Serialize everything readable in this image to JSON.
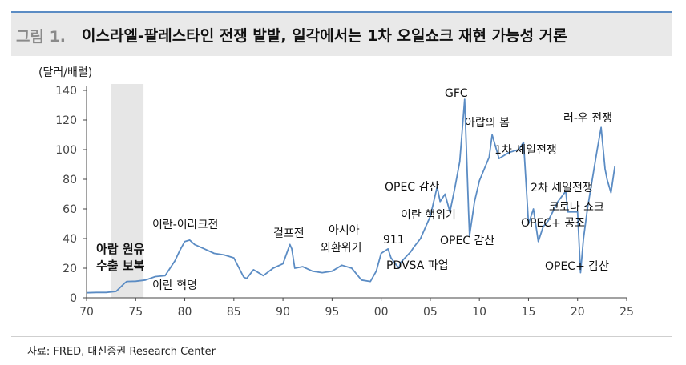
{
  "header": {
    "prefix": "그림 1.",
    "title": "이스라엘-팔레스타인 전쟁 발발, 일각에서는 1차 오일쇼크 재현 가능성 거론"
  },
  "unit_label": "(달러/배럴)",
  "source": "자료: FRED, 대신증권 Research Center",
  "colors": {
    "line": "#5b8cc4",
    "shade": "#e6e6e6",
    "header_bg": "#e9e9e9"
  },
  "chart_data": {
    "type": "line",
    "title": "",
    "xlabel": "",
    "ylabel": "(달러/배럴)",
    "xlim": [
      1970,
      2025
    ],
    "ylim": [
      0,
      140
    ],
    "x_ticks": [
      "70",
      "75",
      "80",
      "85",
      "90",
      "95",
      "00",
      "05",
      "10",
      "15",
      "20",
      "25"
    ],
    "y_ticks": [
      "0",
      "20",
      "40",
      "60",
      "80",
      "100",
      "120",
      "140"
    ],
    "grid": false,
    "legend": "none",
    "shaded_period": [
      1972.5,
      1975.8
    ],
    "series": [
      {
        "x": [
          1970,
          1971,
          1972,
          1973,
          1973.9,
          1974.1,
          1975,
          1976,
          1977,
          1978,
          1979,
          1979.5,
          1980,
          1980.5,
          1981,
          1982,
          1983,
          1984,
          1985,
          1986,
          1986.3,
          1987,
          1988,
          1989,
          1990,
          1990.7,
          1990.9,
          1991.2,
          1992,
          1993,
          1994,
          1995,
          1996,
          1997,
          1998,
          1998.9,
          1999.5,
          2000,
          2000.7,
          2001,
          2001.8,
          2002,
          2003,
          2003.3,
          2004,
          2005,
          2005.7,
          2006,
          2006.5,
          2007,
          2007.5,
          2008,
          2008.5,
          2008.9,
          2009,
          2009.5,
          2010,
          2011,
          2011.3,
          2012,
          2013,
          2014,
          2014.5,
          2015,
          2015.5,
          2016,
          2016.5,
          2017,
          2018,
          2018.8,
          2019,
          2020,
          2020.3,
          2020.6,
          2021,
          2022,
          2022.4,
          2022.8,
          2023,
          2023.4,
          2023.8
        ],
        "y": [
          3.4,
          3.6,
          3.6,
          4.3,
          10,
          11,
          11.2,
          12,
          14.3,
          14.9,
          25,
          32,
          38,
          39,
          36,
          33,
          30,
          29,
          27,
          14,
          13,
          19,
          15,
          20,
          23,
          36,
          33,
          20,
          21,
          18,
          17,
          18,
          22,
          20,
          12,
          11,
          18,
          30,
          33,
          27,
          20,
          24,
          31,
          34,
          40,
          55,
          75,
          65,
          70,
          58,
          74,
          92,
          134,
          58,
          42,
          65,
          79,
          95,
          110,
          94,
          98,
          100,
          105,
          50,
          60,
          38,
          48,
          52,
          65,
          72,
          58,
          58,
          17,
          40,
          60,
          100,
          115,
          87,
          80,
          71,
          89
        ]
      }
    ],
    "annotations": [
      "아랍 원유",
      "수출 보복",
      "이란 혁명",
      "이란-이라크전",
      "걸프전",
      "아시아",
      "외환위기",
      "911",
      "PDVSA 파업",
      "OPEC 감산",
      "이란 핵위기",
      "GFC",
      "OPEC 감산",
      "아랍의 봄",
      "1차 셰일전쟁",
      "2차 셰일전쟁",
      "코로나 쇼크",
      "OPEC+ 공조",
      "러-우 전쟁",
      "OPEC+ 감산"
    ]
  }
}
